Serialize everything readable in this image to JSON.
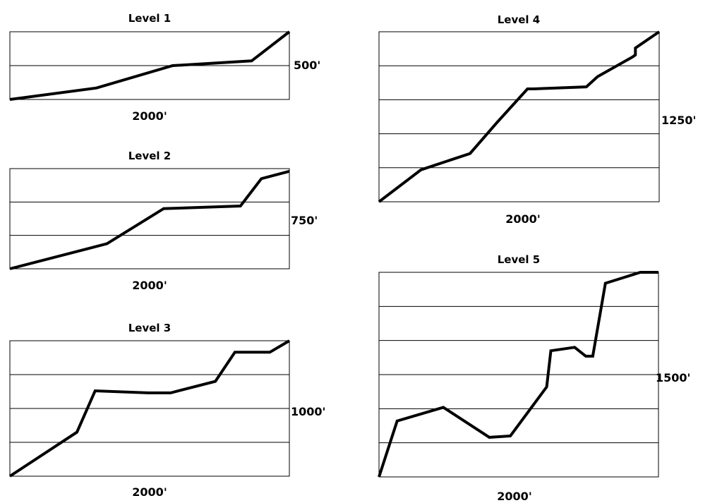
{
  "chart_data": [
    {
      "type": "line",
      "title": "Level 1",
      "xlabel": "2000'",
      "ylabel": "500'",
      "xlim": [
        0,
        2000
      ],
      "ylim": [
        0,
        500
      ],
      "grid": "horizontal",
      "series": [
        {
          "color": "#000000",
          "x": [
            0,
            620,
            1165,
            1730,
            2000
          ],
          "y": [
            0,
            85,
            250,
            285,
            500
          ]
        }
      ]
    },
    {
      "type": "line",
      "title": "Level 2",
      "xlabel": "2000'",
      "ylabel": "750'",
      "xlim": [
        0,
        2000
      ],
      "ylim": [
        0,
        750
      ],
      "grid": "horizontal",
      "series": [
        {
          "color": "#000000",
          "x": [
            0,
            695,
            1100,
            1095,
            1650,
            1800,
            2000
          ],
          "y": [
            0,
            188,
            450,
            450,
            470,
            675,
            730
          ]
        }
      ]
    },
    {
      "type": "line",
      "title": "Level 3",
      "xlabel": "2000'",
      "ylabel": "1000'",
      "xlim": [
        0,
        2000
      ],
      "ylim": [
        0,
        1000
      ],
      "grid": "horizontal",
      "series": [
        {
          "color": "#000000",
          "x": [
            0,
            480,
            610,
            990,
            1150,
            1470,
            1610,
            1860,
            2000
          ],
          "y": [
            0,
            325,
            630,
            615,
            615,
            700,
            915,
            915,
            1000
          ]
        }
      ]
    },
    {
      "type": "line",
      "title": "Level 4",
      "xlabel": "2000'",
      "ylabel": "1250'",
      "xlim": [
        0,
        2000
      ],
      "ylim": [
        0,
        1250
      ],
      "grid": "horizontal",
      "series": [
        {
          "color": "#000000",
          "x": [
            0,
            300,
            650,
            840,
            1060,
            1100,
            1480,
            1560,
            1810,
            1830,
            1830,
            2000
          ],
          "y": [
            0,
            235,
            355,
            580,
            830,
            830,
            845,
            920,
            1065,
            1080,
            1130,
            1250
          ]
        }
      ]
    },
    {
      "type": "line",
      "title": "Level 5",
      "xlabel": "2000'",
      "ylabel": "1500'",
      "xlim": [
        0,
        2000
      ],
      "ylim": [
        0,
        1500
      ],
      "grid": "horizontal",
      "series": [
        {
          "color": "#000000",
          "x": [
            0,
            130,
            460,
            790,
            940,
            1200,
            1230,
            1400,
            1480,
            1530,
            1620,
            1870,
            2000
          ],
          "y": [
            0,
            410,
            510,
            290,
            300,
            660,
            925,
            950,
            885,
            885,
            1420,
            1500,
            1500
          ]
        }
      ]
    }
  ]
}
